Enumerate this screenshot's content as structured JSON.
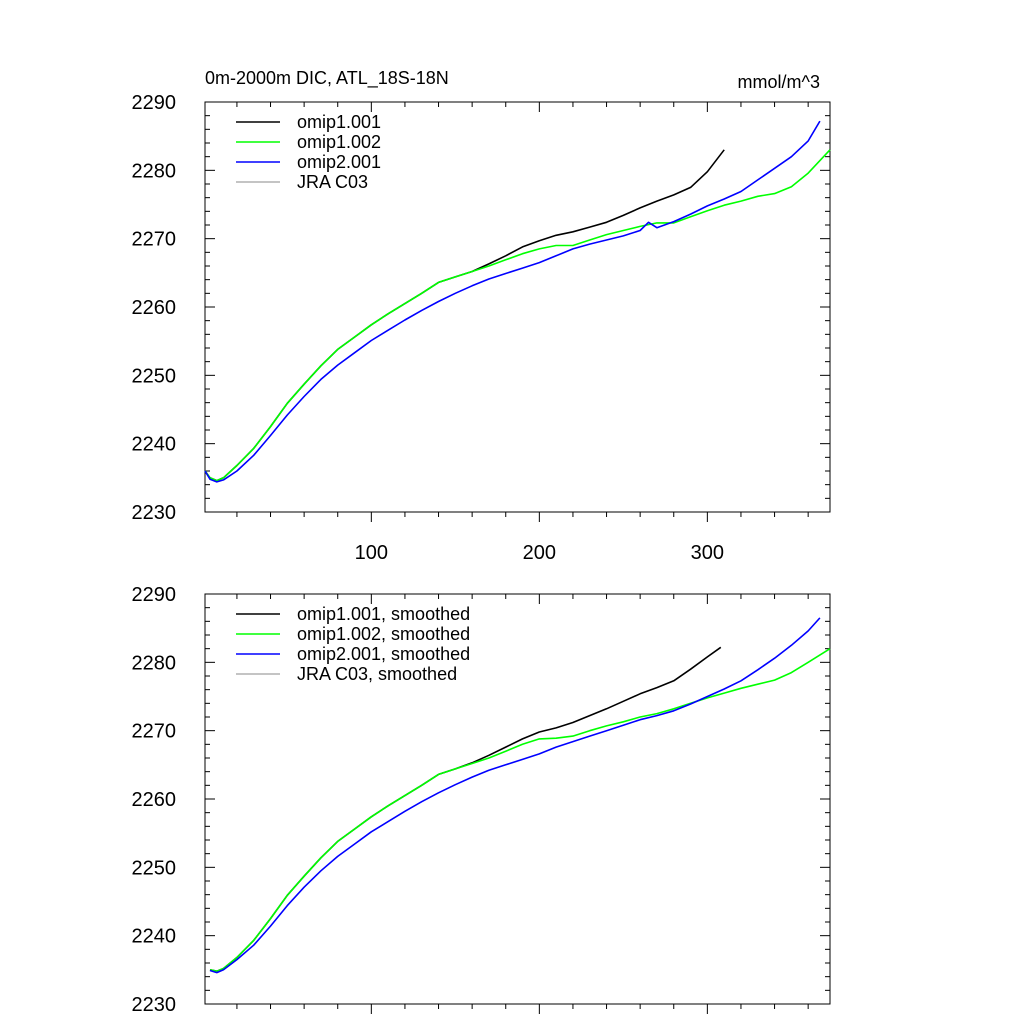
{
  "title": "0m-2000m DIC, ATL_18S-18N",
  "units": "mmol/m^3",
  "chart_data": [
    {
      "type": "line",
      "title": "0m-2000m DIC, ATL_18S-18N",
      "units": "mmol/m^3",
      "xlim": [
        1,
        373
      ],
      "ylim": [
        2230,
        2290
      ],
      "xticks": [
        100,
        200,
        300
      ],
      "yticks": [
        2230,
        2240,
        2250,
        2260,
        2270,
        2280,
        2290
      ],
      "grid": false,
      "legend": "top-left",
      "series": [
        {
          "name": "omip1.001",
          "color": "#000000",
          "x": [
            1,
            4,
            8,
            12,
            20,
            30,
            40,
            50,
            60,
            70,
            80,
            90,
            100,
            110,
            120,
            130,
            140,
            150,
            160,
            170,
            180,
            190,
            200,
            210,
            220,
            230,
            240,
            250,
            260,
            270,
            280,
            290,
            300,
            310
          ],
          "y": [
            2236,
            2235,
            2234.6,
            2235,
            2236.8,
            2239.3,
            2242.5,
            2245.9,
            2248.7,
            2251.4,
            2253.8,
            2255.6,
            2257.4,
            2259,
            2260.5,
            2262,
            2263.6,
            2264.4,
            2265.2,
            2266.3,
            2267.5,
            2268.8,
            2269.7,
            2270.5,
            2271,
            2271.7,
            2272.4,
            2273.4,
            2274.5,
            2275.5,
            2276.4,
            2277.5,
            2279.8,
            2283
          ]
        },
        {
          "name": "omip1.002",
          "color": "#00ff00",
          "x": [
            1,
            4,
            8,
            12,
            20,
            30,
            40,
            50,
            60,
            70,
            80,
            90,
            100,
            110,
            120,
            130,
            140,
            150,
            160,
            170,
            180,
            190,
            200,
            210,
            220,
            230,
            240,
            250,
            260,
            270,
            280,
            290,
            300,
            310,
            320,
            330,
            340,
            350,
            360,
            373
          ],
          "y": [
            2236,
            2235,
            2234.6,
            2235,
            2236.8,
            2239.3,
            2242.5,
            2245.9,
            2248.7,
            2251.4,
            2253.8,
            2255.6,
            2257.4,
            2259,
            2260.5,
            2262,
            2263.6,
            2264.4,
            2265.2,
            2266,
            2266.9,
            2267.8,
            2268.5,
            2269,
            2269,
            2269.8,
            2270.6,
            2271.2,
            2271.8,
            2272.3,
            2272.3,
            2273.2,
            2274.1,
            2274.9,
            2275.5,
            2276.2,
            2276.6,
            2277.6,
            2279.6,
            2283
          ]
        },
        {
          "name": "omip2.001",
          "color": "#0000ff",
          "x": [
            1,
            4,
            8,
            12,
            20,
            30,
            40,
            50,
            60,
            70,
            80,
            90,
            100,
            110,
            120,
            130,
            140,
            150,
            160,
            170,
            180,
            190,
            200,
            210,
            220,
            230,
            240,
            250,
            260,
            265,
            270,
            280,
            290,
            300,
            310,
            320,
            330,
            340,
            350,
            360,
            367
          ],
          "y": [
            2236,
            2234.8,
            2234.4,
            2234.7,
            2236,
            2238.3,
            2241.2,
            2244.2,
            2246.9,
            2249.4,
            2251.5,
            2253.3,
            2255.1,
            2256.6,
            2258.1,
            2259.5,
            2260.8,
            2262,
            2263.1,
            2264.1,
            2264.9,
            2265.7,
            2266.5,
            2267.5,
            2268.5,
            2269.2,
            2269.8,
            2270.4,
            2271.2,
            2272.4,
            2271.6,
            2272.5,
            2273.6,
            2274.8,
            2275.8,
            2276.9,
            2278.6,
            2280.3,
            2282,
            2284.3,
            2287.2
          ]
        },
        {
          "name": "JRA C03",
          "color": "#b0b0b0",
          "x": [],
          "y": []
        }
      ]
    },
    {
      "type": "line",
      "xlim": [
        1,
        373
      ],
      "ylim": [
        2230,
        2290
      ],
      "xticks": [
        100,
        200,
        300
      ],
      "yticks": [
        2230,
        2240,
        2250,
        2260,
        2270,
        2280,
        2290
      ],
      "grid": false,
      "legend": "top-left",
      "series": [
        {
          "name": "omip1.001, smoothed",
          "color": "#000000",
          "x": [
            4,
            8,
            12,
            20,
            30,
            40,
            50,
            60,
            70,
            80,
            90,
            100,
            110,
            120,
            130,
            140,
            150,
            160,
            170,
            180,
            190,
            200,
            210,
            220,
            230,
            240,
            250,
            260,
            270,
            280,
            290,
            300,
            308
          ],
          "y": [
            2235,
            2234.8,
            2235.2,
            2236.8,
            2239.3,
            2242.5,
            2245.9,
            2248.7,
            2251.4,
            2253.8,
            2255.6,
            2257.4,
            2259,
            2260.5,
            2262,
            2263.6,
            2264.4,
            2265.3,
            2266.4,
            2267.6,
            2268.8,
            2269.8,
            2270.4,
            2271.2,
            2272.2,
            2273.2,
            2274.3,
            2275.4,
            2276.3,
            2277.3,
            2279,
            2280.8,
            2282.2
          ]
        },
        {
          "name": "omip1.002, smoothed",
          "color": "#00ff00",
          "x": [
            4,
            8,
            12,
            20,
            30,
            40,
            50,
            60,
            70,
            80,
            90,
            100,
            110,
            120,
            130,
            140,
            150,
            160,
            170,
            180,
            190,
            200,
            210,
            220,
            230,
            240,
            250,
            260,
            270,
            280,
            290,
            300,
            310,
            320,
            330,
            340,
            350,
            360,
            373
          ],
          "y": [
            2235,
            2234.8,
            2235.2,
            2236.8,
            2239.3,
            2242.5,
            2245.9,
            2248.7,
            2251.4,
            2253.8,
            2255.6,
            2257.4,
            2259,
            2260.5,
            2262,
            2263.6,
            2264.4,
            2265.2,
            2266,
            2267,
            2268,
            2268.8,
            2268.9,
            2269.2,
            2270,
            2270.7,
            2271.3,
            2272,
            2272.5,
            2273.2,
            2274,
            2274.8,
            2275.5,
            2276.2,
            2276.8,
            2277.4,
            2278.5,
            2280,
            2282
          ]
        },
        {
          "name": "omip2.001, smoothed",
          "color": "#0000ff",
          "x": [
            4,
            8,
            12,
            20,
            30,
            40,
            50,
            60,
            70,
            80,
            90,
            100,
            110,
            120,
            130,
            140,
            150,
            160,
            170,
            180,
            190,
            200,
            210,
            220,
            230,
            240,
            250,
            260,
            270,
            280,
            290,
            300,
            310,
            320,
            330,
            340,
            350,
            360,
            367
          ],
          "y": [
            2234.9,
            2234.6,
            2235,
            2236.5,
            2238.6,
            2241.4,
            2244.4,
            2247.1,
            2249.5,
            2251.6,
            2253.4,
            2255.2,
            2256.7,
            2258.2,
            2259.6,
            2260.9,
            2262.1,
            2263.2,
            2264.2,
            2265,
            2265.8,
            2266.6,
            2267.6,
            2268.4,
            2269.2,
            2270,
            2270.8,
            2271.6,
            2272.2,
            2272.9,
            2273.9,
            2275,
            2276.1,
            2277.3,
            2278.9,
            2280.6,
            2282.5,
            2284.6,
            2286.5
          ]
        },
        {
          "name": "JRA C03, smoothed",
          "color": "#b0b0b0",
          "x": [],
          "y": []
        }
      ]
    }
  ]
}
